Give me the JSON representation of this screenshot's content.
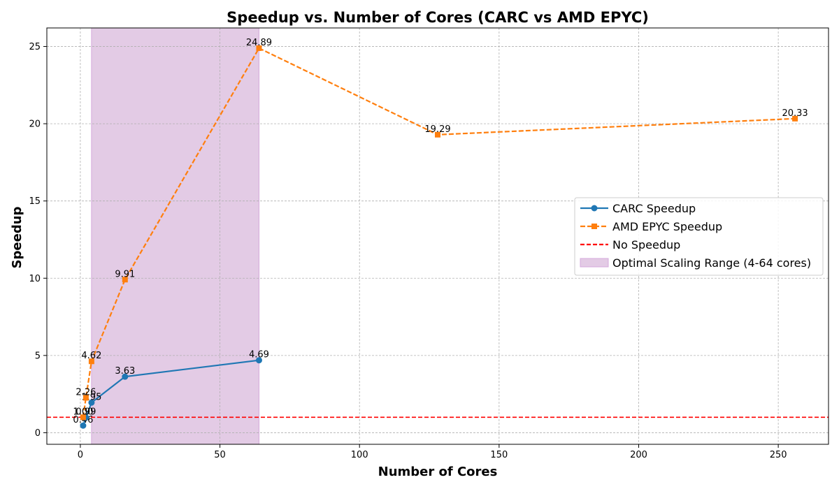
{
  "chart_data": {
    "type": "line",
    "title": "Speedup vs. Number of Cores (CARC vs AMD EPYC)",
    "xlabel": "Number of Cores",
    "ylabel": "Speedup",
    "xlim": [
      -12,
      268
    ],
    "ylim": [
      -0.75,
      26.2
    ],
    "xticks": [
      0,
      50,
      100,
      150,
      200,
      250
    ],
    "yticks": [
      0,
      5,
      10,
      15,
      20,
      25
    ],
    "grid": true,
    "legend_position": "center-right",
    "series": [
      {
        "name": "CARC Speedup",
        "color": "#1f77b4",
        "marker": "circle",
        "line_style": "solid",
        "x": [
          1,
          2,
          4,
          16,
          64
        ],
        "y": [
          0.46,
          0.99,
          1.95,
          3.63,
          4.69
        ],
        "labels": [
          "0.46",
          "0.99",
          "1.95",
          "3.63",
          "4.69"
        ]
      },
      {
        "name": "AMD EPYC Speedup",
        "color": "#ff7f0e",
        "marker": "square",
        "line_style": "dashed",
        "x": [
          1,
          2,
          4,
          16,
          64,
          128,
          256
        ],
        "y": [
          1.0,
          2.26,
          4.62,
          9.91,
          24.89,
          19.29,
          20.33
        ],
        "labels": [
          "1.00",
          "2.26",
          "4.62",
          "9.91",
          "24.89",
          "19.29",
          "20.33"
        ]
      }
    ],
    "reference_line": {
      "name": "No Speedup",
      "y": 1,
      "color": "#ff0000",
      "line_style": "dashed"
    },
    "shaded_region": {
      "name": "Optimal Scaling Range (4-64 cores)",
      "x_start": 4,
      "x_end": 64,
      "color": "#e3cbe5",
      "edge_color": "#d5a9dc"
    }
  }
}
